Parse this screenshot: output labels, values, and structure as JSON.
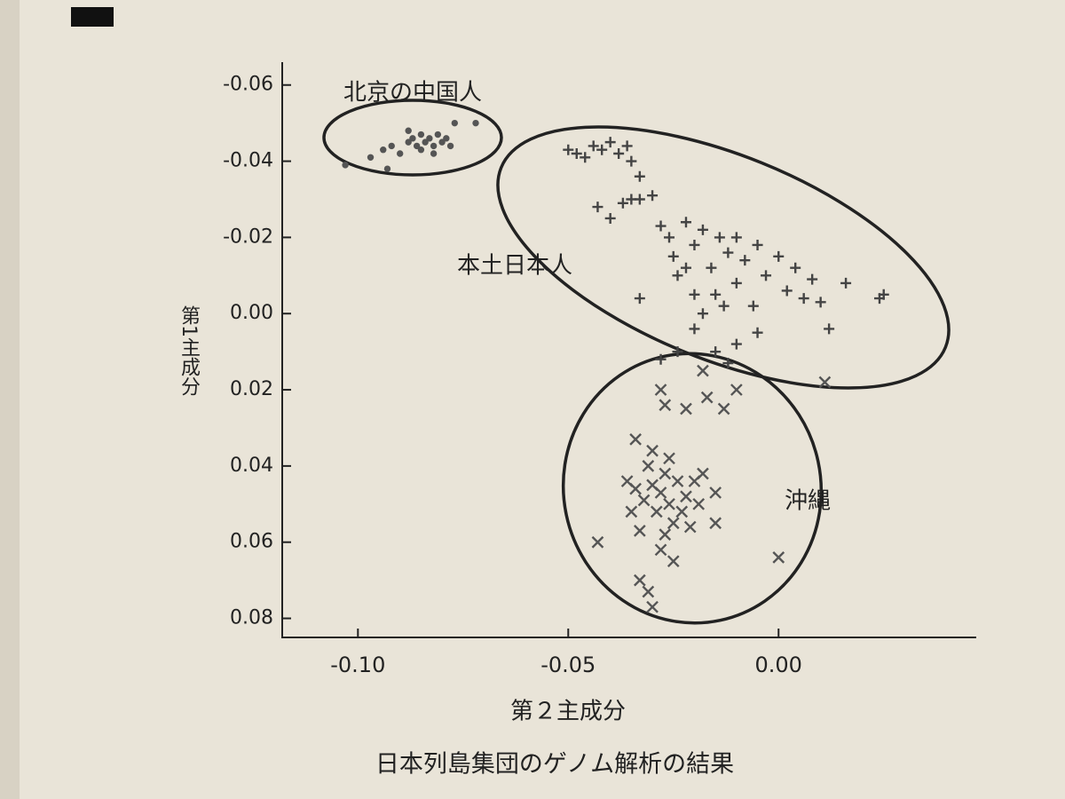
{
  "chart_data": {
    "type": "scatter",
    "caption": "日本列島集団のゲノム解析の結果",
    "xlabel": "第２主成分",
    "ylabel": "第1主成分",
    "xlim": [
      -0.118,
      0.047
    ],
    "ylim": [
      -0.066,
      0.085
    ],
    "y_inverted": true,
    "xticks": [
      {
        "value": -0.1,
        "label": "-0.10"
      },
      -0.05,
      {
        "value": 0,
        "label": "0.00"
      }
    ],
    "yticks": [
      -0.06,
      -0.04,
      -0.02,
      {
        "value": 0,
        "label": "0.00"
      },
      0.02,
      0.04,
      0.06,
      0.08
    ],
    "series": [
      {
        "name": "北京の中国人",
        "marker": "dot",
        "color": "#555555",
        "x": [
          -0.103,
          -0.097,
          -0.094,
          -0.092,
          -0.09,
          -0.088,
          -0.087,
          -0.086,
          -0.085,
          -0.084,
          -0.083,
          -0.082,
          -0.081,
          -0.08,
          -0.079,
          -0.078,
          -0.085,
          -0.088,
          -0.077,
          -0.072,
          -0.093,
          -0.082
        ],
        "y": [
          -0.039,
          -0.041,
          -0.043,
          -0.044,
          -0.042,
          -0.045,
          -0.046,
          -0.044,
          -0.047,
          -0.045,
          -0.046,
          -0.044,
          -0.047,
          -0.045,
          -0.046,
          -0.044,
          -0.043,
          -0.048,
          -0.05,
          -0.05,
          -0.038,
          -0.042
        ]
      },
      {
        "name": "本土日本人",
        "marker": "plus",
        "color": "#444444",
        "x": [
          -0.05,
          -0.048,
          -0.046,
          -0.044,
          -0.042,
          -0.04,
          -0.038,
          -0.036,
          -0.035,
          -0.033,
          -0.043,
          -0.04,
          -0.037,
          -0.035,
          -0.033,
          -0.03,
          -0.028,
          -0.026,
          -0.025,
          -0.024,
          -0.022,
          -0.02,
          -0.018,
          -0.016,
          -0.015,
          -0.014,
          -0.012,
          -0.01,
          -0.008,
          -0.006,
          -0.005,
          -0.003,
          0.0,
          0.002,
          0.004,
          0.006,
          0.008,
          0.01,
          -0.02,
          -0.018,
          -0.013,
          -0.022,
          -0.01,
          -0.02,
          -0.015,
          -0.01,
          -0.024,
          -0.033,
          0.024,
          0.025,
          0.016,
          0.012,
          -0.005,
          -0.028,
          -0.012
        ],
        "y": [
          -0.043,
          -0.042,
          -0.041,
          -0.044,
          -0.043,
          -0.045,
          -0.042,
          -0.044,
          -0.04,
          -0.036,
          -0.028,
          -0.025,
          -0.029,
          -0.03,
          -0.03,
          -0.031,
          -0.023,
          -0.02,
          -0.015,
          -0.01,
          -0.024,
          -0.018,
          -0.022,
          -0.012,
          -0.005,
          -0.02,
          -0.016,
          -0.008,
          -0.014,
          -0.002,
          -0.018,
          -0.01,
          -0.015,
          -0.006,
          -0.012,
          -0.004,
          -0.009,
          -0.003,
          -0.005,
          0.0,
          -0.002,
          -0.012,
          -0.02,
          0.004,
          0.01,
          0.008,
          0.01,
          -0.004,
          -0.004,
          -0.005,
          -0.008,
          0.004,
          0.005,
          0.012,
          0.013
        ]
      },
      {
        "name": "沖縄",
        "marker": "cross",
        "color": "#555555",
        "x": [
          -0.028,
          -0.03,
          -0.026,
          -0.024,
          -0.032,
          -0.027,
          -0.029,
          -0.022,
          -0.034,
          -0.025,
          -0.031,
          -0.02,
          -0.023,
          -0.035,
          -0.019,
          -0.027,
          -0.033,
          -0.021,
          -0.03,
          -0.026,
          -0.018,
          -0.015,
          -0.036,
          -0.028,
          -0.025,
          -0.033,
          -0.031,
          -0.03,
          -0.043,
          -0.034,
          -0.027,
          -0.022,
          -0.017,
          -0.013,
          -0.028,
          -0.01,
          -0.018,
          0.011,
          0.0,
          -0.015
        ],
        "y": [
          0.047,
          0.045,
          0.05,
          0.044,
          0.049,
          0.042,
          0.052,
          0.048,
          0.046,
          0.055,
          0.04,
          0.044,
          0.052,
          0.052,
          0.05,
          0.058,
          0.057,
          0.056,
          0.036,
          0.038,
          0.042,
          0.047,
          0.044,
          0.062,
          0.065,
          0.07,
          0.073,
          0.077,
          0.06,
          0.033,
          0.024,
          0.025,
          0.022,
          0.025,
          0.02,
          0.02,
          0.015,
          0.018,
          0.064,
          0.055
        ]
      }
    ]
  }
}
